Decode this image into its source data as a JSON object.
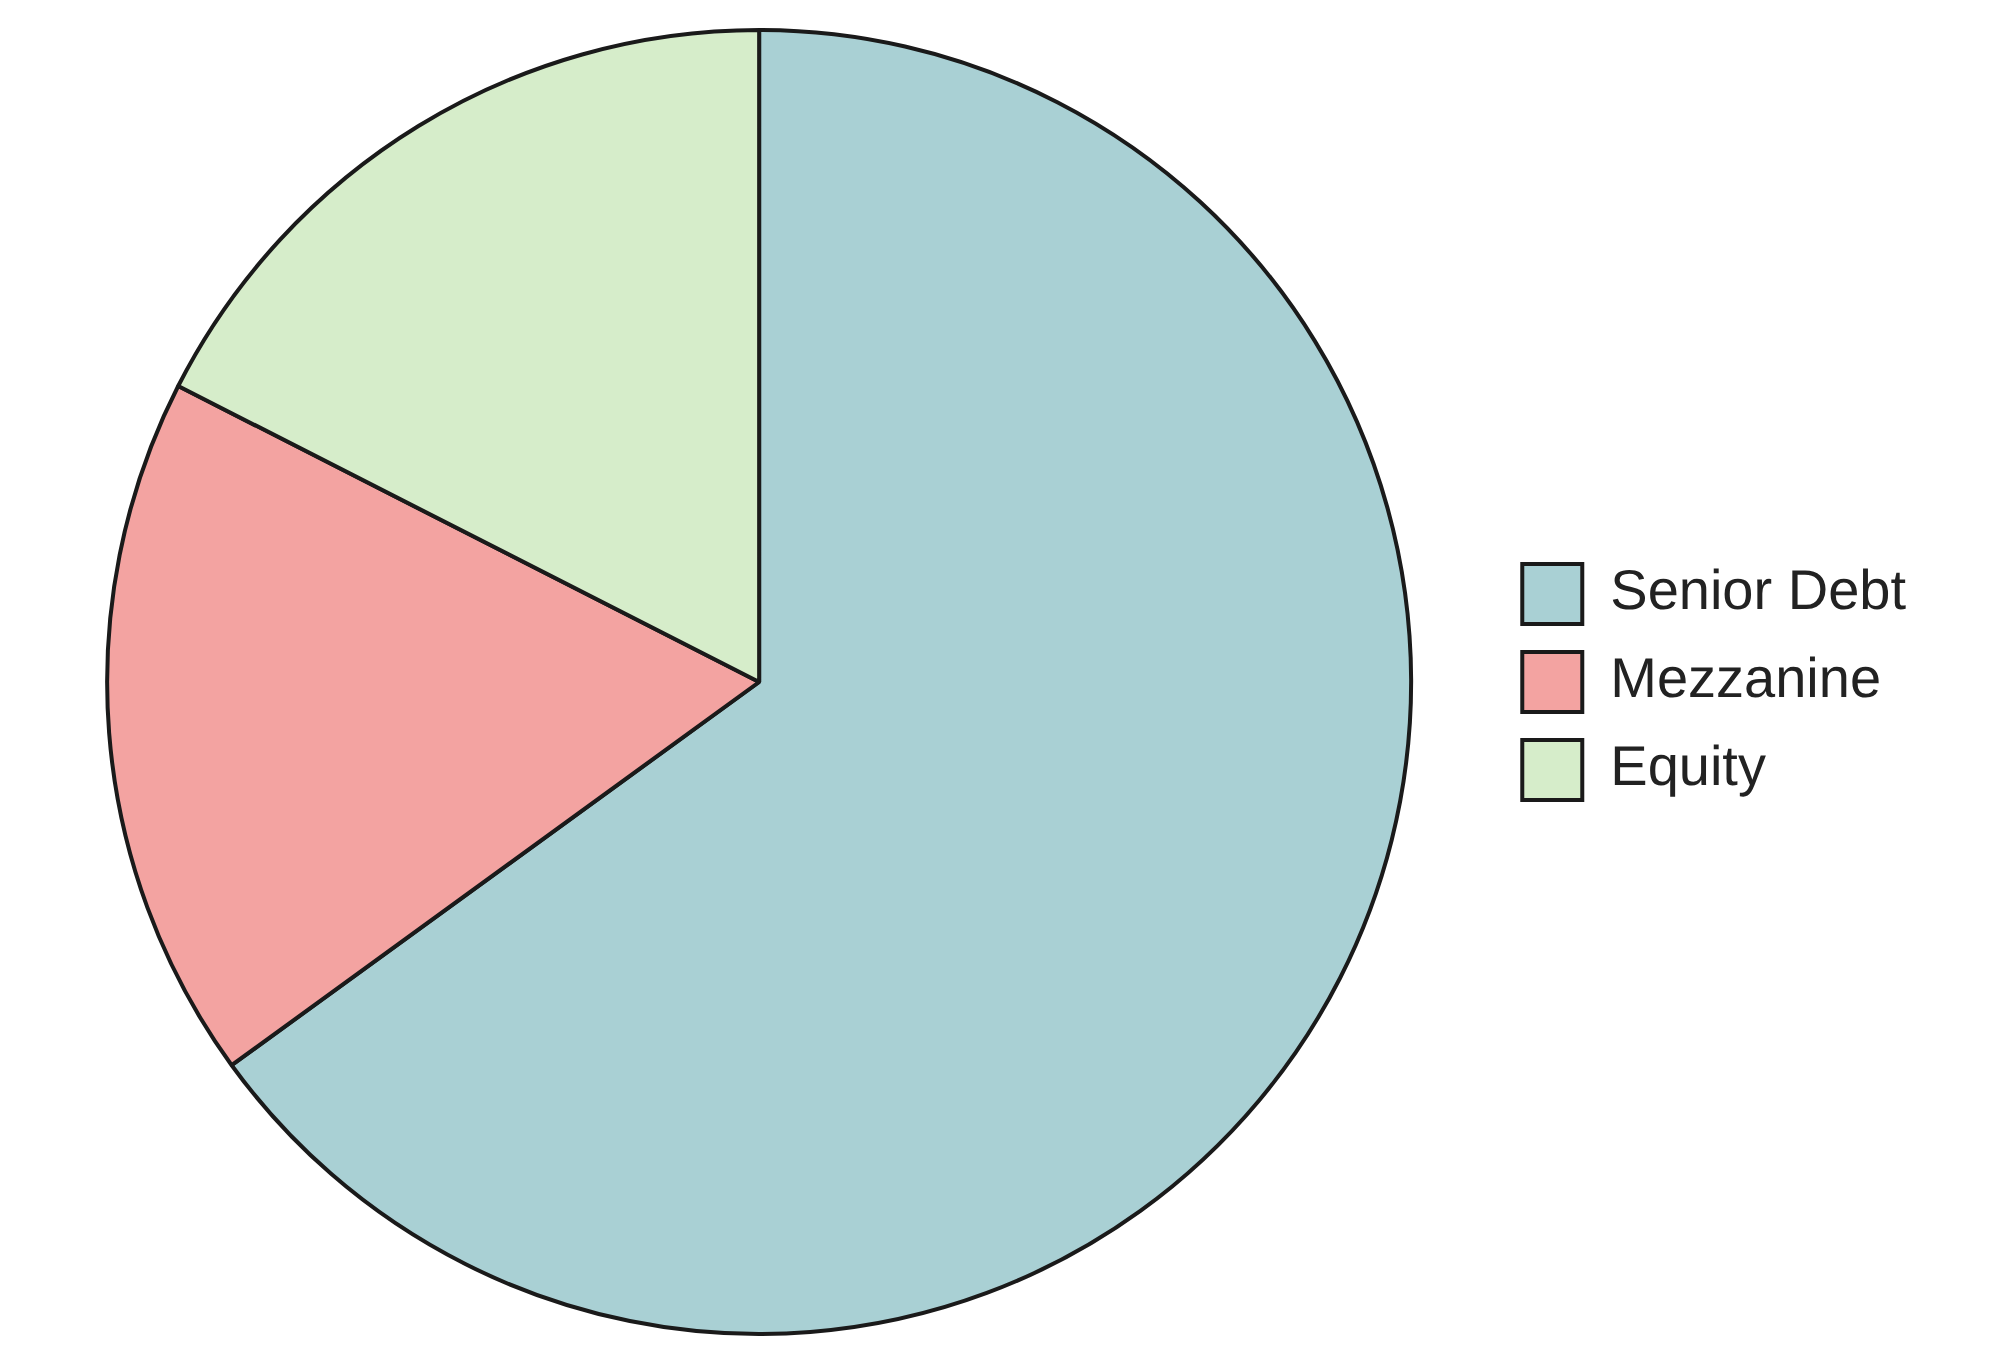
{
  "chart_data": {
    "type": "pie",
    "categories": [
      "Senior Debt",
      "Mezzanine",
      "Equity"
    ],
    "values": [
      65,
      17.5,
      17.5
    ],
    "colors": [
      "#a9d0d4",
      "#f3a3a1",
      "#d6edca"
    ],
    "legend": "right"
  }
}
